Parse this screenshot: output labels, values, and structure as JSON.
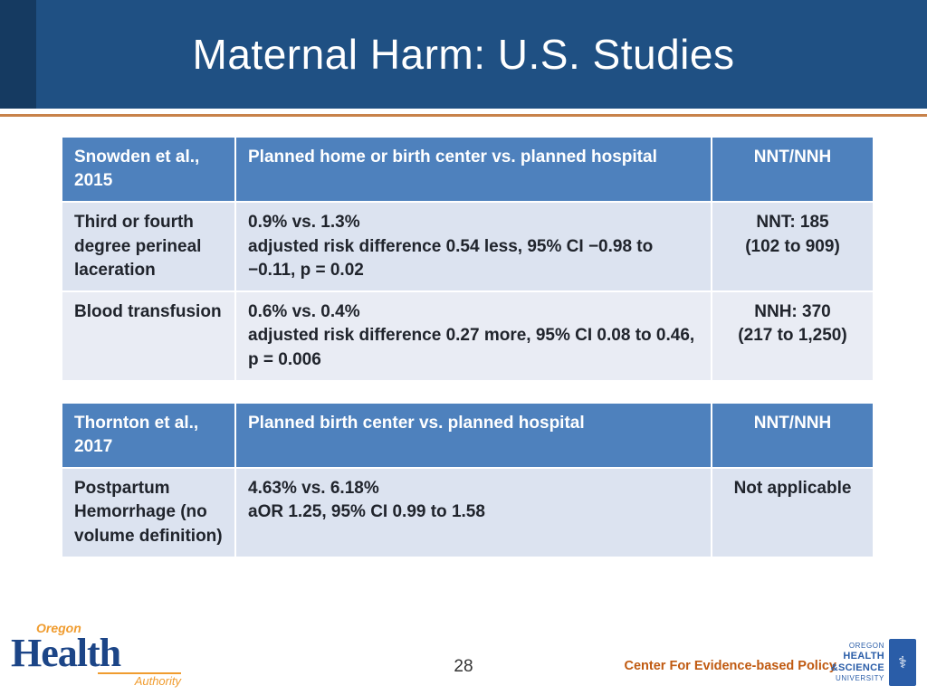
{
  "slide": {
    "title": "Maternal Harm: U.S. Studies",
    "page_number": "28"
  },
  "tables": [
    {
      "columns": [
        "Snowden et al., 2015",
        "Planned home or birth center vs. planned hospital",
        "NNT/NNH"
      ],
      "rows": [
        {
          "outcome": "Third or fourth degree perineal laceration",
          "result_line1": "0.9% vs. 1.3%",
          "result_line2": "adjusted risk difference 0.54 less, 95% CI −0.98 to −0.11, p = 0.02",
          "effect_line1": "NNT: 185",
          "effect_line2": "(102 to 909)"
        },
        {
          "outcome": "Blood transfusion",
          "result_line1": "0.6% vs. 0.4%",
          "result_line2": "adjusted risk difference 0.27 more, 95% CI 0.08 to 0.46, p = 0.006",
          "effect_line1": "NNH: 370",
          "effect_line2": "(217 to 1,250)"
        }
      ]
    },
    {
      "columns": [
        "Thornton et al., 2017",
        "Planned birth center vs. planned hospital",
        "NNT/NNH"
      ],
      "rows": [
        {
          "outcome": "Postpartum Hemorrhage (no volume definition)",
          "result_line1": "4.63% vs. 6.18%",
          "result_line2": "aOR 1.25, 95% CI 0.99 to 1.58",
          "effect_line1": "Not applicable",
          "effect_line2": ""
        }
      ]
    }
  ],
  "footer": {
    "page_number": "28",
    "org": "Center For Evidence-based Policy",
    "oha_logo": {
      "top": "Oregon",
      "main": "Health",
      "bottom": "Authority"
    },
    "ohsu_logo": {
      "line1": "OREGON",
      "line2": "HEALTH",
      "line3": "&SCIENCE",
      "line4": "UNIVERSITY"
    }
  },
  "colors": {
    "title_bar_bg": "#1F5083",
    "title_bar_accent": "#153A61",
    "accent_line": "#C8824A",
    "table_header_bg": "#4E81BD",
    "row_shade_1": "#DCE3F0",
    "row_shade_2": "#E9ECF4",
    "footer_org_color": "#C05A11",
    "oha_blue": "#1C4587",
    "oha_orange": "#F09C2F",
    "ohsu_blue": "#2A5DA8"
  }
}
